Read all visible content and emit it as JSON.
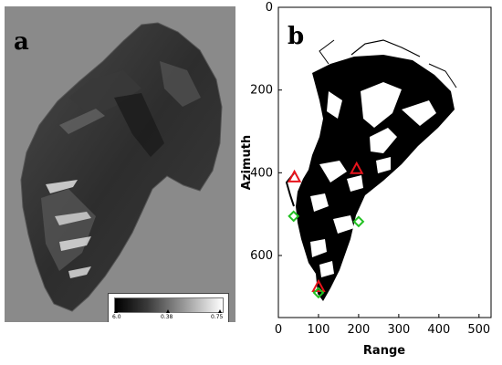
{
  "panel_a": {
    "letter": "a",
    "colorbar": {
      "ticks": [
        "6.0",
        "0.38",
        "0.75"
      ]
    }
  },
  "panel_b": {
    "letter": "b",
    "xlabel": "Range",
    "ylabel": "Azimuth",
    "xticks": [
      0,
      100,
      200,
      300,
      400,
      500
    ],
    "yticks": [
      0,
      200,
      400,
      600
    ],
    "xlim": [
      0,
      530
    ],
    "ylim": [
      750,
      0
    ]
  },
  "chart_data": {
    "type": "scatter",
    "title": "",
    "xlabel": "Range",
    "ylabel": "Azimuth",
    "xlim": [
      0,
      530
    ],
    "ylim": [
      750,
      0
    ],
    "grid": false,
    "series": [
      {
        "marker": "triangle",
        "color": "#e8141c",
        "points": [
          [
            40,
            410
          ],
          [
            195,
            390
          ],
          [
            100,
            675
          ]
        ]
      },
      {
        "marker": "diamond",
        "color": "#22c022",
        "points": [
          [
            38,
            505
          ],
          [
            200,
            518
          ],
          [
            100,
            690
          ]
        ]
      }
    ]
  }
}
